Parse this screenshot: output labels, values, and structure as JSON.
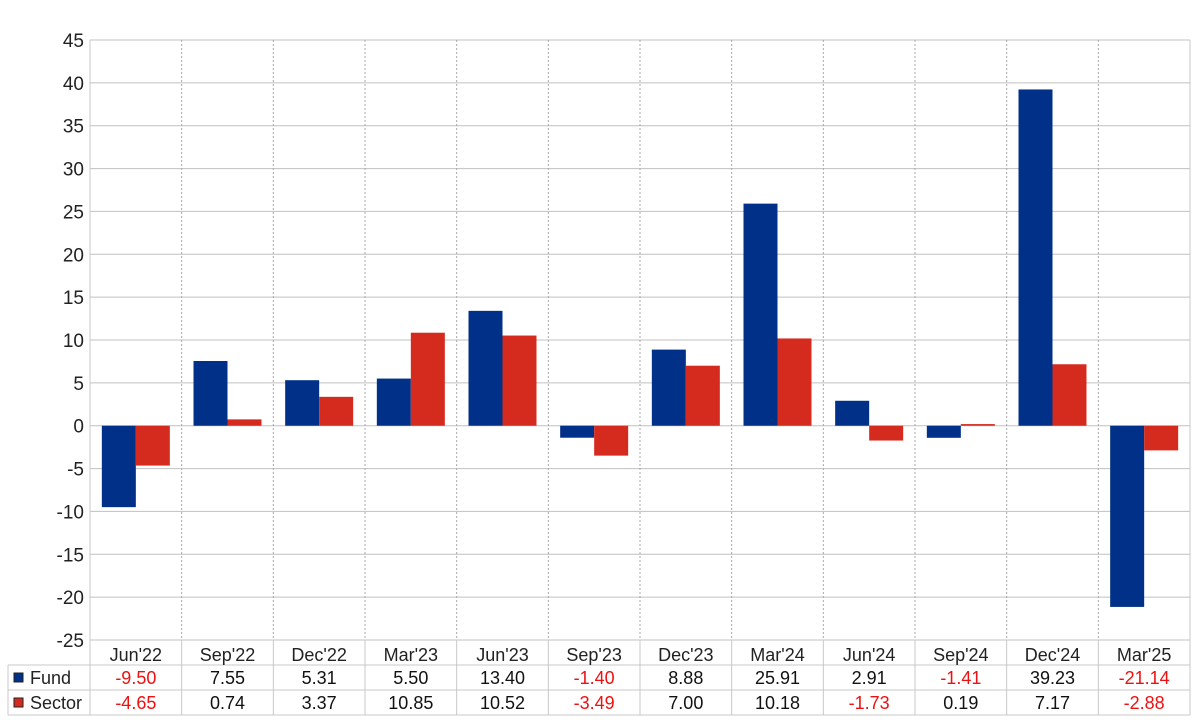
{
  "colors": {
    "fund": "#003087",
    "sector": "#d52b1e",
    "negative_text": "#ee1111",
    "positive_text": "#111111",
    "grid": "#c0c0c0"
  },
  "chart_data": {
    "type": "bar",
    "categories": [
      "Jun'22",
      "Sep'22",
      "Dec'22",
      "Mar'23",
      "Jun'23",
      "Sep'23",
      "Dec'23",
      "Mar'24",
      "Jun'24",
      "Sep'24",
      "Dec'24",
      "Mar'25"
    ],
    "series": [
      {
        "name": "Fund",
        "values": [
          -9.5,
          7.55,
          5.31,
          5.5,
          13.4,
          -1.4,
          8.88,
          25.91,
          2.91,
          -1.41,
          39.23,
          -21.14
        ],
        "labels": [
          "-9.50",
          "7.55",
          "5.31",
          "5.50",
          "13.40",
          "-1.40",
          "8.88",
          "25.91",
          "2.91",
          "-1.41",
          "39.23",
          "-21.14"
        ]
      },
      {
        "name": "Sector",
        "values": [
          -4.65,
          0.74,
          3.37,
          10.85,
          10.52,
          -3.49,
          7.0,
          10.18,
          -1.73,
          0.19,
          7.17,
          -2.88
        ],
        "labels": [
          "-4.65",
          "0.74",
          "3.37",
          "10.85",
          "10.52",
          "-3.49",
          "7.00",
          "10.18",
          "-1.73",
          "0.19",
          "7.17",
          "-2.88"
        ]
      }
    ],
    "ylim": [
      -25,
      45
    ],
    "yticks": [
      "-25",
      "-20",
      "-15",
      "-10",
      "-5",
      "0",
      "5",
      "10",
      "15",
      "20",
      "25",
      "30",
      "35",
      "40",
      "45"
    ],
    "grid": true,
    "legend": "data-table-left"
  }
}
